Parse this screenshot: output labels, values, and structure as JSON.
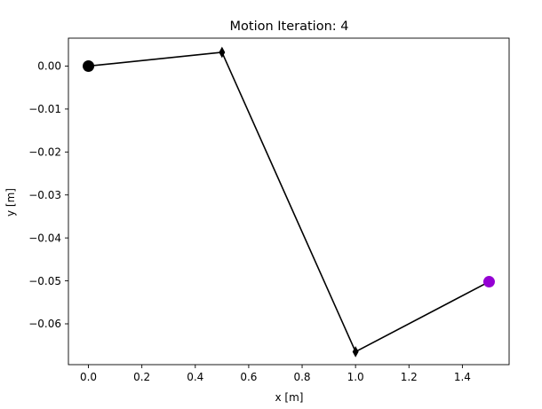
{
  "chart_data": {
    "type": "line",
    "title": "Motion Iteration: 4",
    "xlabel": "x [m]",
    "ylabel": "y [m]",
    "xlim": [
      -0.075,
      1.575
    ],
    "ylim": [
      -0.0695,
      0.0065
    ],
    "xticks": [
      0.0,
      0.2,
      0.4,
      0.6,
      0.8,
      1.0,
      1.2,
      1.4
    ],
    "xtick_labels": [
      "0.0",
      "0.2",
      "0.4",
      "0.6",
      "0.8",
      "1.0",
      "1.2",
      "1.4"
    ],
    "yticks": [
      0.0,
      -0.01,
      -0.02,
      -0.03,
      -0.04,
      -0.05,
      -0.06
    ],
    "ytick_labels": [
      "0.00",
      "−0.01",
      "−0.02",
      "−0.03",
      "−0.04",
      "−0.05",
      "−0.06"
    ],
    "grid": false,
    "series": [
      {
        "x": [
          0.0,
          0.5,
          1.0,
          1.5
        ],
        "y": [
          0.0,
          0.0032,
          -0.0665,
          -0.0502
        ],
        "color": "#000000"
      }
    ],
    "markers": {
      "start": {
        "x": 0.0,
        "y": 0.0,
        "color": "#000000",
        "shape": "circle"
      },
      "joints": [
        {
          "x": 0.5,
          "y": 0.0032,
          "color": "#000000",
          "shape": "thin-diamond"
        },
        {
          "x": 1.0,
          "y": -0.0665,
          "color": "#000000",
          "shape": "thin-diamond"
        }
      ],
      "end": {
        "x": 1.5,
        "y": -0.0502,
        "color": "#9400d3",
        "shape": "circle"
      }
    }
  }
}
